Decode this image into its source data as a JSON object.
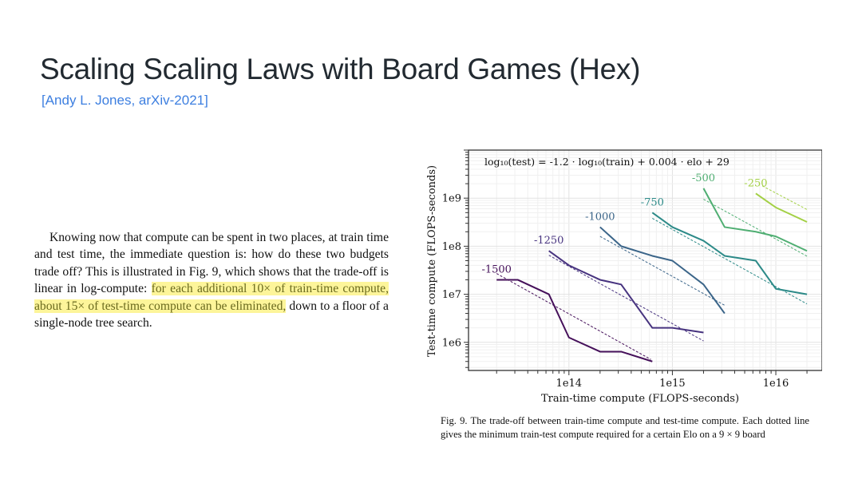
{
  "slide": {
    "title": "Scaling Scaling Laws with Board Games (Hex)",
    "subtitle": "[Andy L. Jones, arXiv-2021]",
    "accent_color": "#3d7fe0"
  },
  "paragraph": {
    "before": "Knowing now that compute can be spent in two places, at train time and test time, the immediate question is: how do these two budgets trade off? This is illustrated in Fig. 9, which shows that the trade-off is linear in log-compute: ",
    "highlight": "for each additional 10× of train-time compute, about 15× of test-time compute can be eliminated,",
    "after": " down to a floor of a single-node tree search.",
    "highlight_color": "#fdf59a"
  },
  "caption": "Fig. 9.  The trade-off between train-time compute and test-time compute. Each dotted line gives the minimum train-test compute required for a certain Elo on a 9 × 9 board",
  "chart_data": {
    "type": "line",
    "annotation": "log₁₀(test) = -1.2 · log₁₀(train) + 0.004 · elo + 29",
    "xlabel": "Train-time compute (FLOPS-seconds)",
    "ylabel": "Test-time compute (FLOPS-seconds)",
    "xscale": "log",
    "yscale": "log",
    "xlim": [
      10700000000000.0,
      2.8e+16
    ],
    "ylim": [
      260000.0,
      10000000000.0
    ],
    "xticks": [
      {
        "value": 100000000000000.0,
        "label": "1e14"
      },
      {
        "value": 1000000000000000.0,
        "label": "1e15"
      },
      {
        "value": 1e+16,
        "label": "1e16"
      }
    ],
    "yticks": [
      {
        "value": 1000000.0,
        "label": "1e6"
      },
      {
        "value": 10000000.0,
        "label": "1e7"
      },
      {
        "value": 100000000.0,
        "label": "1e8"
      },
      {
        "value": 1000000000.0,
        "label": "1e9"
      }
    ],
    "grid": true,
    "series": [
      {
        "name": "-1500",
        "color": "#45105a",
        "x": [
          20000000000000.0,
          32000000000000.0,
          64000000000000.0,
          100000000000000.0,
          200000000000000.0,
          320000000000000.0,
          640000000000000.0
        ],
        "y": [
          20000000.0,
          20000000.0,
          10000000.0,
          1260000.0,
          640000.0,
          640000.0,
          400000.0
        ],
        "fit": {
          "x": [
            20000000000000.0,
            620000000000000.0
          ],
          "y": [
            27000000.0,
            440000.0
          ]
        }
      },
      {
        "name": "-1250",
        "color": "#47337f",
        "x": [
          64000000000000.0,
          100000000000000.0,
          200000000000000.0,
          320000000000000.0,
          640000000000000.0,
          1000000000000000.0,
          2000000000000000.0
        ],
        "y": [
          80000000.0,
          40000000.0,
          20000000.0,
          16000000.0,
          2000000.0,
          2000000.0,
          1600000.0
        ],
        "fit": {
          "x": [
            64000000000000.0,
            2000000000000000.0
          ],
          "y": [
            65000000.0,
            1070000.0
          ]
        }
      },
      {
        "name": "-1000",
        "color": "#3b6589",
        "x": [
          200000000000000.0,
          320000000000000.0,
          640000000000000.0,
          1000000000000000.0,
          2000000000000000.0,
          3200000000000000.0
        ],
        "y": [
          250000000.0,
          100000000.0,
          63000000.0,
          50000000.0,
          16000000.0,
          4000000.0
        ],
        "fit": {
          "x": [
            200000000000000.0,
            3200000000000000.0
          ],
          "y": [
            160000000.0,
            5900000.0
          ]
        }
      },
      {
        "name": "-750",
        "color": "#2c8a88",
        "x": [
          640000000000000.0,
          1000000000000000.0,
          2000000000000000.0,
          3200000000000000.0,
          6400000000000000.0,
          1e+16,
          2e+16
        ],
        "y": [
          500000000.0,
          250000000.0,
          130000000.0,
          63000000.0,
          50000000.0,
          13000000.0,
          10000000.0
        ],
        "fit": {
          "x": [
            640000000000000.0,
            2e+16
          ],
          "y": [
            380000000.0,
            6300000.0
          ]
        }
      },
      {
        "name": "-500",
        "color": "#4fae72",
        "x": [
          2000000000000000.0,
          3200000000000000.0,
          6400000000000000.0,
          1e+16,
          2e+16
        ],
        "y": [
          1600000000.0,
          250000000.0,
          200000000.0,
          160000000.0,
          80000000.0
        ],
        "fit": {
          "x": [
            2000000000000000.0,
            2e+16
          ],
          "y": [
            950000000.0,
            62000000.0
          ]
        }
      },
      {
        "name": "-250",
        "color": "#a3d045",
        "x": [
          6400000000000000.0,
          1e+16,
          2e+16
        ],
        "y": [
          1250000000.0,
          640000000.0,
          320000000.0
        ],
        "fit": {
          "x": [
            7400000000000000.0,
            2e+16
          ],
          "y": [
            1800000000.0,
            580000000.0
          ]
        }
      }
    ]
  }
}
